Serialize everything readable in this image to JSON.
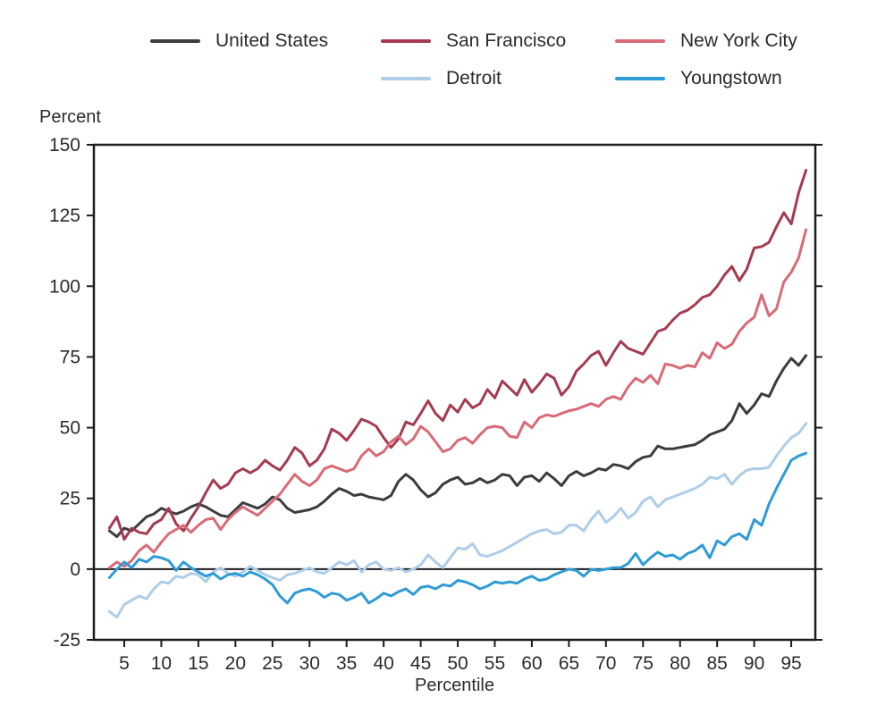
{
  "legend": {
    "items": [
      {
        "label": "United States",
        "color": "#3C3C3E",
        "row": 1,
        "col": 0
      },
      {
        "label": "San Francisco",
        "color": "#A43B50",
        "row": 1,
        "col": 1
      },
      {
        "label": "New York City",
        "color": "#D96A77",
        "row": 1,
        "col": 2
      },
      {
        "label": "Detroit",
        "color": "#AECDE8",
        "row": 2,
        "col": 1
      },
      {
        "label": "Youngstown",
        "color": "#2E9BD6",
        "row": 2,
        "col": 2
      }
    ]
  },
  "axes": {
    "y_title": "Percent",
    "x_title": "Percentile"
  },
  "chart_data": {
    "type": "line",
    "title": "",
    "xlabel": "Percentile",
    "ylabel": "Percent",
    "x_axis_range": [
      0.9,
      98.25
    ],
    "y_axis_range": [
      -25,
      150
    ],
    "x_ticks": [
      5,
      10,
      15,
      20,
      25,
      30,
      35,
      40,
      45,
      50,
      55,
      60,
      65,
      70,
      75,
      80,
      85,
      90,
      95
    ],
    "y_ticks": [
      -25,
      0,
      25,
      50,
      75,
      100,
      125,
      150
    ],
    "zero_line": true,
    "grid": false,
    "axis_color": "#1c1c1e",
    "x": [
      3,
      4,
      5,
      6,
      7,
      8,
      9,
      10,
      11,
      12,
      13,
      14,
      15,
      16,
      17,
      18,
      19,
      20,
      21,
      22,
      23,
      24,
      25,
      26,
      27,
      28,
      29,
      30,
      31,
      32,
      33,
      34,
      35,
      36,
      37,
      38,
      39,
      40,
      41,
      42,
      43,
      44,
      45,
      46,
      47,
      48,
      49,
      50,
      51,
      52,
      53,
      54,
      55,
      56,
      57,
      58,
      59,
      60,
      61,
      62,
      63,
      64,
      65,
      66,
      67,
      68,
      69,
      70,
      71,
      72,
      73,
      74,
      75,
      76,
      77,
      78,
      79,
      80,
      81,
      82,
      83,
      84,
      85,
      86,
      87,
      88,
      89,
      90,
      91,
      92,
      93,
      94,
      95,
      96,
      97
    ],
    "series": [
      {
        "name": "United States",
        "color": "#3C3C3E",
        "values": [
          13.5,
          11.5,
          14.5,
          13.5,
          16,
          18.5,
          19.5,
          21.5,
          20.5,
          19.5,
          20.5,
          22,
          23,
          22,
          20.5,
          19,
          18.5,
          21,
          23.5,
          22.5,
          21.5,
          23,
          25.5,
          24.5,
          21.5,
          20,
          20.5,
          21,
          22,
          24,
          26.5,
          28.5,
          27.5,
          26,
          26.5,
          25.5,
          25,
          24.5,
          26,
          31,
          33.5,
          31.5,
          28,
          25.5,
          27,
          30,
          31.5,
          32.5,
          30,
          30.5,
          32,
          30.5,
          31.5,
          33.5,
          33,
          29.5,
          32.5,
          33,
          31,
          34,
          32,
          29.5,
          33,
          34.5,
          33,
          34,
          35.5,
          35,
          37,
          36.5,
          35.5,
          38,
          39.5,
          40,
          43.5,
          42.5,
          42.5,
          43,
          43.5,
          44,
          45.5,
          47.5,
          48.5,
          49.5,
          52.5,
          58.5,
          55,
          58,
          62,
          61,
          66.5,
          71,
          74.5,
          72,
          75.5
        ]
      },
      {
        "name": "San Francisco",
        "color": "#A43B50",
        "values": [
          14.5,
          18.5,
          10.5,
          14.5,
          13,
          12.5,
          16,
          17.5,
          21.5,
          16,
          13.5,
          18,
          22,
          27,
          31.5,
          28.5,
          30,
          34,
          35.5,
          34,
          35.5,
          38.5,
          36.5,
          35,
          38.5,
          43,
          41,
          36.5,
          38.5,
          42.5,
          49.5,
          48,
          45.5,
          49,
          53,
          52,
          50.5,
          46.5,
          43,
          46,
          52,
          51,
          55,
          59.5,
          55,
          52.5,
          58,
          55.5,
          60,
          57,
          58.5,
          63.5,
          60.5,
          66.5,
          64,
          61.5,
          67,
          62.5,
          65.5,
          69,
          67.5,
          61.5,
          64.5,
          70,
          72.5,
          75.5,
          77,
          72,
          76.5,
          80.5,
          78,
          77,
          76,
          80,
          84,
          85,
          88,
          90.5,
          91.5,
          93.5,
          96,
          97,
          100,
          104,
          107,
          102,
          106,
          113.5,
          114,
          115.5,
          121,
          126,
          122,
          133,
          141
        ]
      },
      {
        "name": "New York City",
        "color": "#D96A77",
        "values": [
          0.5,
          2.5,
          1,
          3,
          6.5,
          8.5,
          6,
          9.5,
          12.5,
          14,
          15.5,
          13,
          15.5,
          17.5,
          18,
          14,
          17.5,
          20,
          22,
          20.5,
          19,
          21.5,
          24,
          26.5,
          30,
          33.5,
          31,
          29.5,
          31.5,
          35.5,
          36.5,
          35.5,
          34.5,
          35.5,
          40,
          42.5,
          40,
          41.5,
          45,
          47,
          44,
          46,
          50.5,
          48.5,
          45,
          41.5,
          42.5,
          45.5,
          46.5,
          44.5,
          47.5,
          50,
          50.5,
          50,
          47,
          46.5,
          52,
          50,
          53.5,
          54.5,
          54,
          55,
          56,
          56.5,
          57.5,
          58.5,
          57.5,
          60,
          61,
          60,
          64.5,
          67.5,
          66,
          68.5,
          65.5,
          72.5,
          72,
          71,
          72,
          71.5,
          76.5,
          74.5,
          80,
          78,
          79.5,
          84,
          87,
          89,
          97,
          89.5,
          92,
          101.5,
          105,
          110,
          120
        ]
      },
      {
        "name": "Detroit",
        "color": "#AECDE8",
        "values": [
          -15,
          -17,
          -12.5,
          -11,
          -9.5,
          -10.5,
          -7,
          -4.5,
          -5,
          -2.5,
          -3,
          -1.5,
          -2,
          -4.5,
          -1,
          0.5,
          -1.5,
          -2.5,
          -1,
          1,
          -0.5,
          -2,
          -3,
          -4,
          -2,
          -1.5,
          -0.5,
          0.5,
          -1,
          -1.5,
          0.5,
          2.5,
          1.5,
          3,
          -1,
          1.5,
          2.5,
          0,
          -0.5,
          0.5,
          -1,
          0,
          1.5,
          5,
          2.5,
          0.5,
          4,
          7.5,
          7,
          9,
          5,
          4.5,
          5.5,
          6.5,
          8,
          9.5,
          11,
          12.5,
          13.5,
          14,
          12.5,
          13,
          15.5,
          15.5,
          13.5,
          17.5,
          20.5,
          16.5,
          18.5,
          21.5,
          18,
          20,
          24,
          25.5,
          22,
          24.5,
          25.5,
          26.5,
          27.5,
          28.5,
          30,
          32.5,
          32,
          33.5,
          30,
          33,
          35,
          35.5,
          35.5,
          36,
          40,
          43.5,
          46.5,
          48,
          51.5
        ]
      },
      {
        "name": "Youngstown",
        "color": "#2E9BD6",
        "values": [
          -3,
          0,
          2.5,
          0.5,
          3.5,
          2.5,
          4.5,
          4,
          3,
          -0.5,
          2.5,
          0.5,
          -1,
          -2.5,
          -1.5,
          -3.5,
          -2,
          -1.5,
          -2.5,
          -1,
          -2,
          -3.5,
          -5.5,
          -9.5,
          -12,
          -8.5,
          -7.5,
          -7,
          -8,
          -10,
          -8.5,
          -9,
          -11,
          -10,
          -8.5,
          -12,
          -10.5,
          -8.5,
          -9.5,
          -8,
          -7,
          -9,
          -6.5,
          -6,
          -7,
          -5.5,
          -6,
          -4,
          -4.5,
          -5.5,
          -7,
          -6,
          -4.5,
          -5,
          -4.5,
          -5,
          -3.5,
          -2.5,
          -4,
          -3.5,
          -2,
          -1,
          0,
          -0.5,
          -2.5,
          0,
          -0.5,
          0,
          0.5,
          0.5,
          2,
          5.5,
          1.5,
          4,
          6,
          4.5,
          5,
          3.5,
          5.5,
          6.5,
          8.5,
          4,
          10,
          8.5,
          11.5,
          12.5,
          10.5,
          17.5,
          15.5,
          23,
          28.5,
          33.5,
          38.5,
          40,
          41
        ]
      }
    ]
  }
}
